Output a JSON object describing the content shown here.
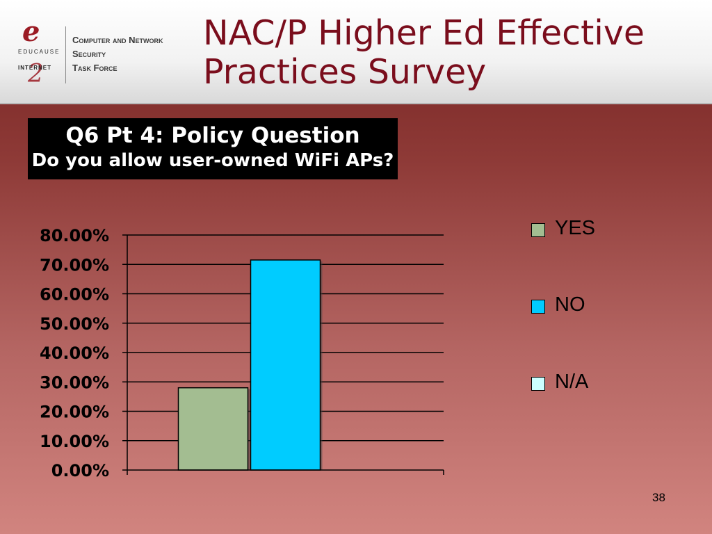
{
  "header": {
    "logo": {
      "educause_mark": "e",
      "educause_text": "EDUCAUSE",
      "internet2_text": "INTERNET",
      "internet2_mark": "2"
    },
    "task_force": [
      "Computer and Network",
      "Security",
      "Task Force"
    ],
    "title_lines": [
      "NAC/P Higher Ed Effective",
      "Practices Survey"
    ]
  },
  "question": {
    "line1": "Q6 Pt 4: Policy Question",
    "line2": "Do you allow user-owned WiFi APs?"
  },
  "chart_data": {
    "type": "bar",
    "categories": [
      ""
    ],
    "series": [
      {
        "name": "YES",
        "values": [
          0.28
        ],
        "color": "#a3bd91"
      },
      {
        "name": "NO",
        "values": [
          0.715
        ],
        "color": "#00ccff"
      },
      {
        "name": "N/A",
        "values": [
          0
        ],
        "color": "#ccffff"
      }
    ],
    "title": "",
    "xlabel": "",
    "ylabel": "",
    "ylim": [
      0,
      0.8
    ],
    "yticks": [
      0,
      0.1,
      0.2,
      0.3,
      0.4,
      0.5,
      0.6,
      0.7,
      0.8
    ],
    "ytick_labels": [
      "0.00%",
      "10.00%",
      "20.00%",
      "30.00%",
      "40.00%",
      "50.00%",
      "60.00%",
      "70.00%",
      "80.00%"
    ],
    "grid": true,
    "legend": "right"
  },
  "page_number": "38"
}
